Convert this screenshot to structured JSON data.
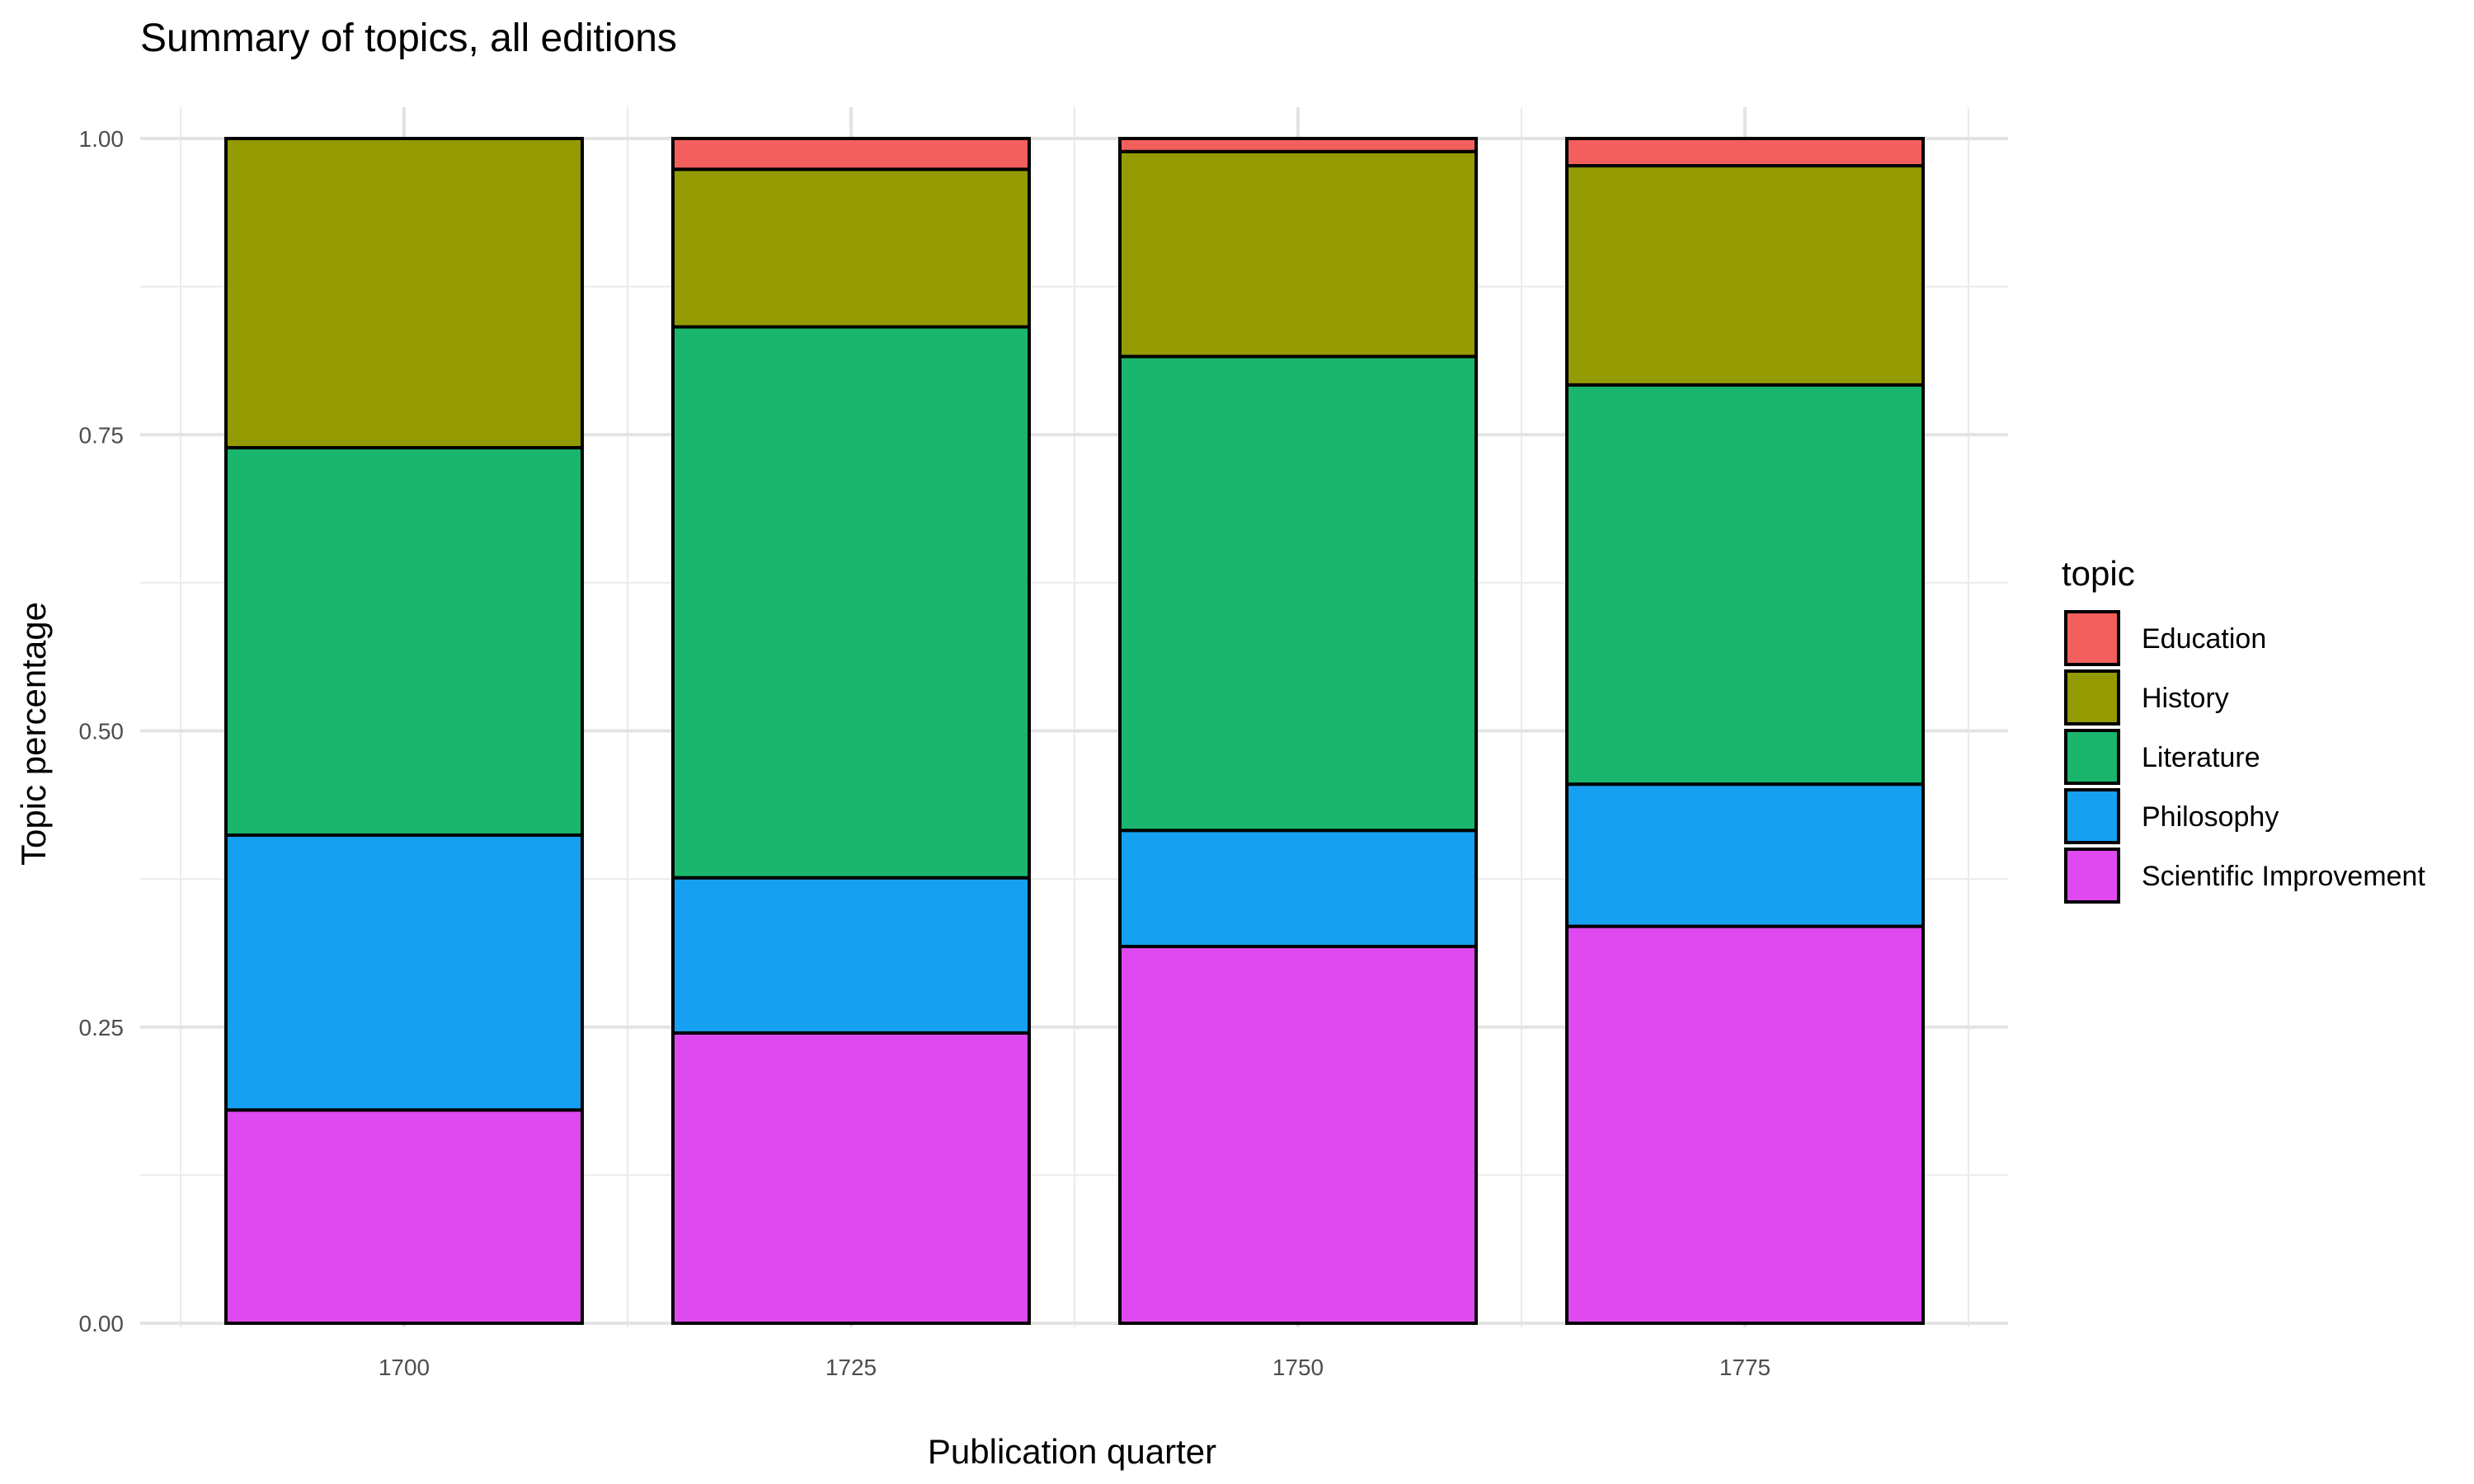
{
  "chart_data": {
    "type": "bar",
    "stacked": true,
    "title": "Summary of topics, all editions",
    "xlabel": "Publication quarter",
    "ylabel": "Topic percentage",
    "categories": [
      "1700",
      "1725",
      "1750",
      "1775"
    ],
    "ylim": [
      0,
      1
    ],
    "yticks": [
      "0.00",
      "0.25",
      "0.50",
      "0.75",
      "1.00"
    ],
    "grid": true,
    "legend": {
      "title": "topic",
      "position": "right",
      "entries": [
        "Education",
        "History",
        "Literature",
        "Philosophy",
        "Scientific Improvement"
      ]
    },
    "series": [
      {
        "name": "Scientific Improvement",
        "color": "#DF4AF0",
        "values": [
          0.18,
          0.245,
          0.318,
          0.335
        ]
      },
      {
        "name": "Philosophy",
        "color": "#16A0F2",
        "values": [
          0.232,
          0.131,
          0.098,
          0.12
        ]
      },
      {
        "name": "Literature",
        "color": "#1AB66E",
        "values": [
          0.327,
          0.465,
          0.4,
          0.337
        ]
      },
      {
        "name": "History",
        "color": "#949A02",
        "values": [
          0.261,
          0.133,
          0.173,
          0.185
        ]
      },
      {
        "name": "Education",
        "color": "#F35F5D",
        "values": [
          0,
          0.026,
          0.011,
          0.023
        ]
      }
    ]
  }
}
